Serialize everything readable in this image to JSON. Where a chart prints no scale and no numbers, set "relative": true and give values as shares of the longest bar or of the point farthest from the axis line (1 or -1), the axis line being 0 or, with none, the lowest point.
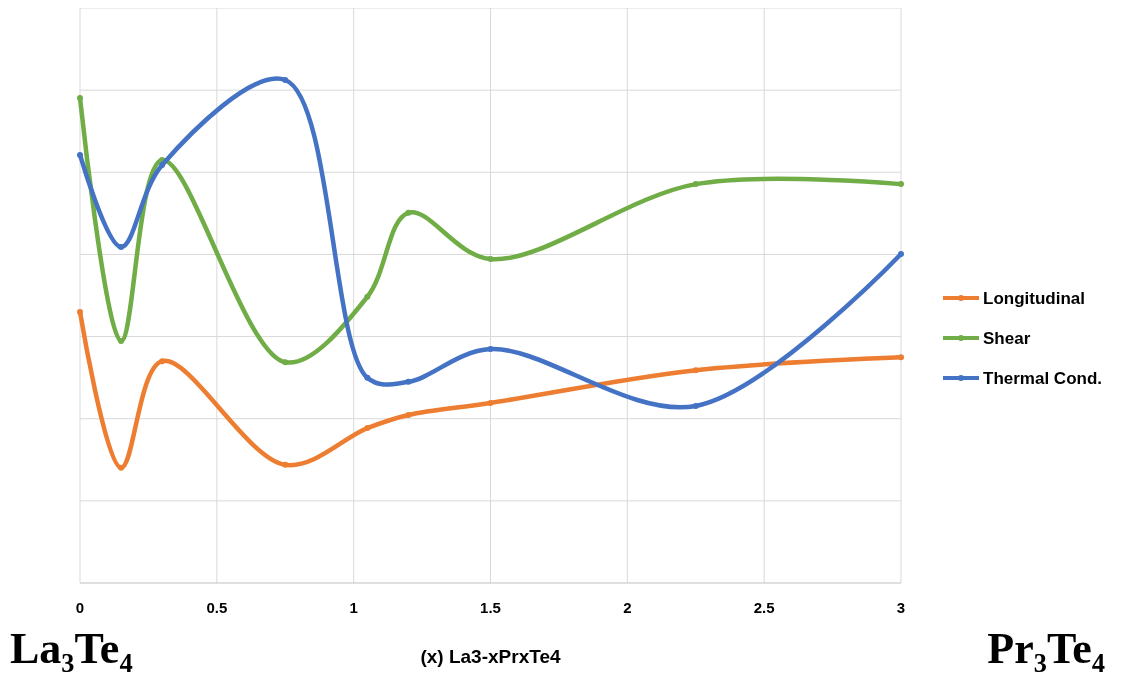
{
  "chart_data": {
    "type": "line",
    "relative": true,
    "xlabel": "(x) La3-xPrxTe4",
    "x": [
      0,
      0.15,
      0.3,
      0.75,
      1.05,
      1.2,
      1.5,
      2.25,
      3
    ],
    "xlim": [
      0,
      3
    ],
    "xticks": [
      0,
      0.5,
      1,
      1.5,
      2,
      2.5,
      3
    ],
    "grid": true,
    "legend": "right",
    "marker": "circle",
    "line_style": "solid",
    "annotations": [
      "La₃Te₄",
      "Pr₃Te₄"
    ],
    "series": [
      {
        "name": "Longitudinal",
        "color": "#ed7d31",
        "values": [
          0.539,
          0.229,
          0.441,
          0.235,
          0.308,
          0.334,
          0.358,
          0.423,
          0.449
        ]
      },
      {
        "name": "Shear",
        "color": "#70ad47",
        "values": [
          0.964,
          0.481,
          0.841,
          0.439,
          0.569,
          0.736,
          0.644,
          0.793,
          0.793
        ]
      },
      {
        "name": "Thermal Cond.",
        "color": "#4472c4",
        "values": [
          0.851,
          0.668,
          0.831,
          1,
          0.408,
          0.4,
          0.465,
          0.352,
          0.654
        ]
      }
    ]
  }
}
